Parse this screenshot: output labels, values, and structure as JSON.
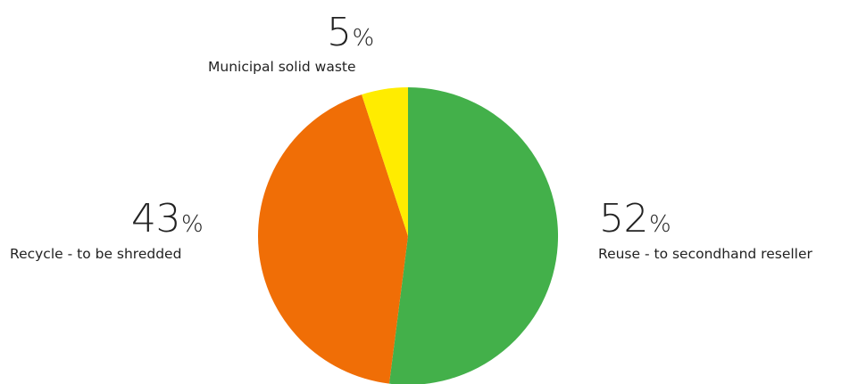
{
  "chart_data": {
    "type": "pie",
    "title": "",
    "start": "top (12 o'clock)",
    "direction": "clockwise",
    "slices": [
      {
        "label": "Reuse - to secondhand reseller",
        "value": 52,
        "percent_text": "52",
        "unit": "%",
        "color": "#43b04a"
      },
      {
        "label": "Recycle - to be shredded",
        "value": 43,
        "percent_text": "43",
        "unit": "%",
        "color": "#f06e06"
      },
      {
        "label": "Municipal solid waste",
        "value": 5,
        "percent_text": "5",
        "unit": "%",
        "color": "#ffec00"
      }
    ]
  }
}
